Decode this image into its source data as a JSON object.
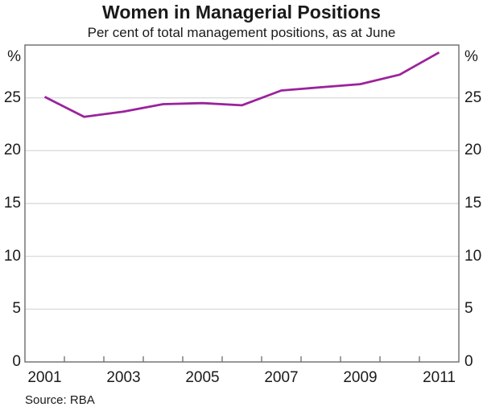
{
  "header": {
    "title": "Women in Managerial Positions",
    "subtitle": "Per cent of total management positions, as at June"
  },
  "footer": {
    "source": "Source: RBA"
  },
  "colors": {
    "line": "#9B239B",
    "frame": "#6b6b6b",
    "grid": "#d4d4d4",
    "text": "#1a1a1a"
  },
  "chart_data": {
    "type": "line",
    "title": "Women in Managerial Positions",
    "subtitle": "Per cent of total management positions, as at June",
    "unit": "%",
    "x": [
      2001,
      2002,
      2003,
      2004,
      2005,
      2006,
      2007,
      2008,
      2009,
      2010,
      2011
    ],
    "series": [
      {
        "name": "Women in managerial positions",
        "values": [
          25.1,
          23.2,
          23.7,
          24.4,
          24.5,
          24.3,
          25.7,
          26.0,
          26.3,
          27.2,
          29.3
        ]
      }
    ],
    "y_ticks": [
      0,
      5,
      10,
      15,
      20,
      25
    ],
    "ylim": [
      0,
      30
    ],
    "x_tick_label_years": [
      2001,
      2003,
      2005,
      2007,
      2009,
      2011
    ],
    "grid": "horizontal-gridlines-on",
    "legend": "none",
    "source": "Source: RBA"
  }
}
